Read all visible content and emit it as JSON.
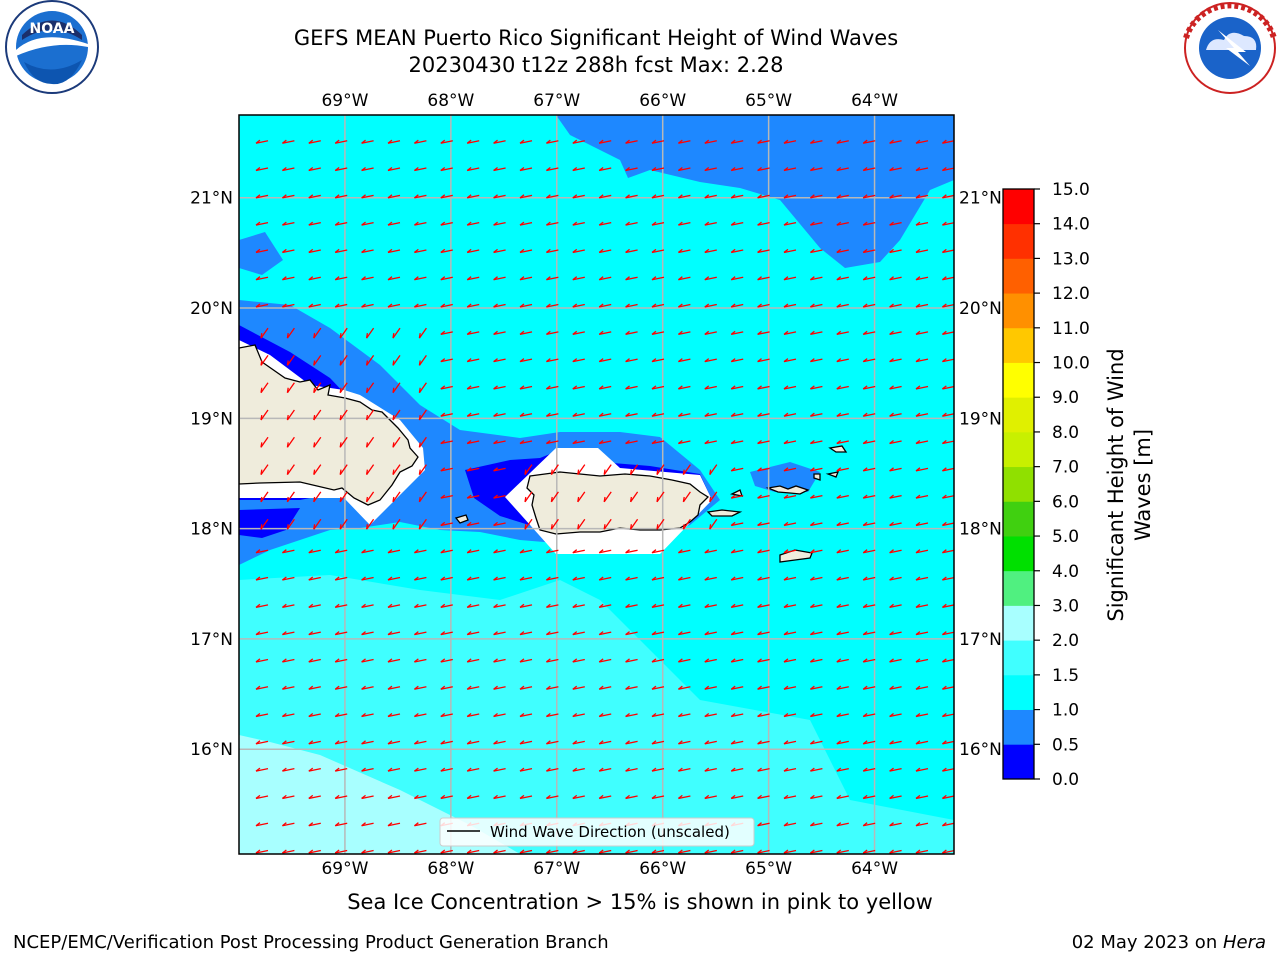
{
  "title": {
    "line1": "GEFS MEAN Puerto Rico Significant Height of Wind Waves",
    "line2": "20230430 t12z 288h fcst   Max: 2.28"
  },
  "subtitle": "Sea Ice Concentration > 15% is shown in pink to yellow",
  "footer": {
    "left": "NCEP/EMC/Verification Post Processing Product Generation Branch",
    "date": "02 May 2023 on ",
    "host": "Hera"
  },
  "logos": {
    "left": "noaa-logo",
    "right": "national-weather-service-logo"
  },
  "map": {
    "lon_labels": [
      "69°W",
      "68°W",
      "67°W",
      "66°W",
      "65°W",
      "64°W"
    ],
    "lat_labels": [
      "21°N",
      "20°N",
      "19°N",
      "18°N",
      "17°N",
      "16°N"
    ],
    "lon_values": [
      -69,
      -68,
      -67,
      -66,
      -65,
      -64
    ],
    "lat_values": [
      21,
      20,
      19,
      18,
      17,
      16
    ],
    "lon_range": [
      -70.0,
      -63.25
    ],
    "lat_range": [
      15.05,
      21.75
    ],
    "legend_label": "Wind Wave Direction (unscaled)",
    "arrow_color": "#ff0000",
    "land_color": "#efecdc",
    "grid": true
  },
  "colorbar": {
    "label_line1": "Significant Height of Wind",
    "label_line2": "Waves [m]",
    "levels": [
      0.0,
      0.5,
      1.0,
      1.5,
      2.0,
      3.0,
      4.0,
      5.0,
      6.0,
      7.0,
      8.0,
      9.0,
      10.0,
      11.0,
      12.0,
      13.0,
      14.0,
      15.0
    ],
    "tick_labels": [
      "0.0",
      "0.5",
      "1.0",
      "1.5",
      "2.0",
      "3.0",
      "4.0",
      "5.0",
      "6.0",
      "7.0",
      "8.0",
      "9.0",
      "10.0",
      "11.0",
      "12.0",
      "13.0",
      "14.0",
      "15.0"
    ],
    "colors": [
      "#0000ff",
      "#1e88ff",
      "#00ffff",
      "#40ffff",
      "#a8ffff",
      "#50f080",
      "#00e000",
      "#40d010",
      "#90e000",
      "#c8f000",
      "#e0f000",
      "#ffff00",
      "#ffc800",
      "#ff9000",
      "#ff6000",
      "#ff3000",
      "#ff0000"
    ]
  }
}
